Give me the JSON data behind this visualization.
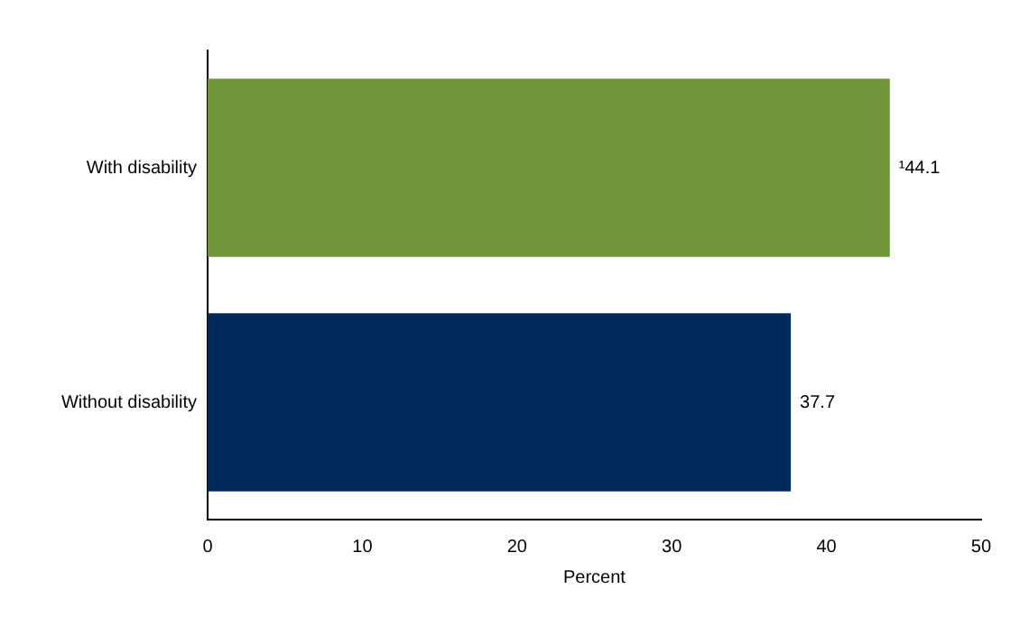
{
  "chart_data": {
    "type": "bar",
    "orientation": "horizontal",
    "categories": [
      "With disability",
      "Without disability"
    ],
    "values": [
      44.1,
      37.7
    ],
    "colors": [
      "#6f973a",
      "#002b5c"
    ],
    "value_labels": [
      "¹44.1",
      "37.7"
    ],
    "xlabel": "Percent",
    "xlim": [
      0,
      50
    ],
    "xticks": [
      0,
      10,
      20,
      30,
      40,
      50
    ],
    "grid": false,
    "legend": false
  }
}
